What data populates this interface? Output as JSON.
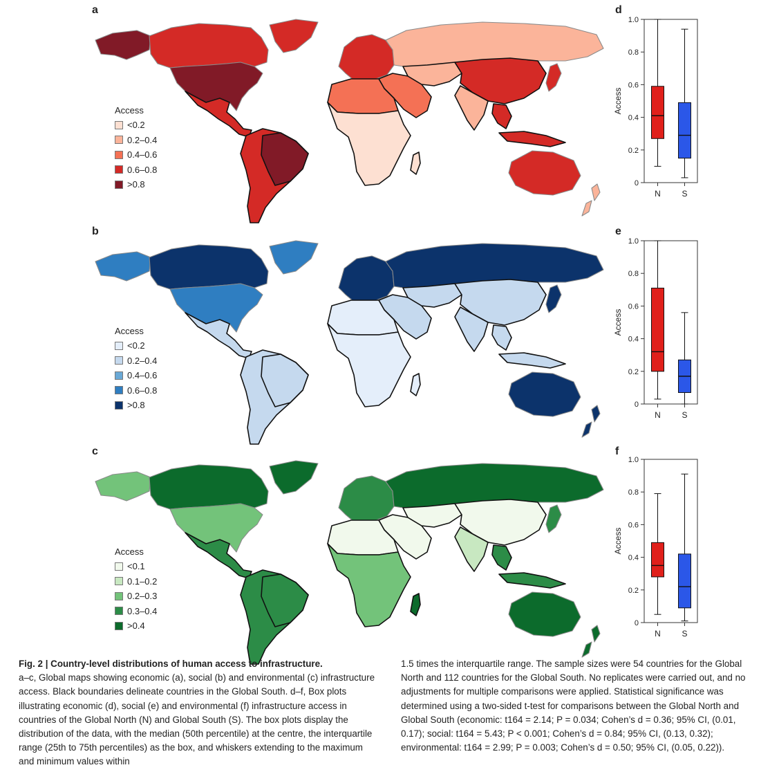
{
  "figure": {
    "panels": [
      {
        "letter": "a"
      },
      {
        "letter": "b"
      },
      {
        "letter": "c"
      },
      {
        "letter": "d"
      },
      {
        "letter": "e"
      },
      {
        "letter": "f"
      }
    ]
  },
  "maps": [
    {
      "panel": "a",
      "legend_title": "Access",
      "classes": [
        {
          "label": "<0.2",
          "color": "#fde0d2"
        },
        {
          "label": "0.2–0.4",
          "color": "#fbb49a"
        },
        {
          "label": "0.4–0.6",
          "color": "#f47155"
        },
        {
          "label": "0.6–0.8",
          "color": "#d42a26"
        },
        {
          "label": ">0.8",
          "color": "#811a27"
        }
      ],
      "regions": {
        "north_america": "#d42a26",
        "usa": "#811a27",
        "alaska": "#811a27",
        "greenland": "#d42a26",
        "mexico_central": "#d42a26",
        "south_america": "#d42a26",
        "brazil": "#811a27",
        "europe": "#d42a26",
        "russia": "#fbb49a",
        "middle_east": "#f47155",
        "central_asia": "#fbb49a",
        "china": "#d42a26",
        "india": "#fbb49a",
        "se_asia": "#d42a26",
        "japan": "#d42a26",
        "north_africa": "#f47155",
        "africa": "#fde0d2",
        "australia": "#d42a26",
        "nz": "#fbb49a",
        "madagascar": "#fde0d2"
      }
    },
    {
      "panel": "b",
      "legend_title": "Access",
      "classes": [
        {
          "label": "<0.2",
          "color": "#e4eefa"
        },
        {
          "label": "0.2–0.4",
          "color": "#c5d9ee"
        },
        {
          "label": "0.4–0.6",
          "color": "#6aa9d6"
        },
        {
          "label": "0.6–0.8",
          "color": "#2f7ec1"
        },
        {
          "label": ">0.8",
          "color": "#0c336b"
        }
      ],
      "regions": {
        "north_america": "#0c336b",
        "usa": "#2f7ec1",
        "alaska": "#2f7ec1",
        "greenland": "#2f7ec1",
        "mexico_central": "#c5d9ee",
        "south_america": "#c5d9ee",
        "brazil": "#c5d9ee",
        "europe": "#0c336b",
        "russia": "#0c336b",
        "middle_east": "#c5d9ee",
        "central_asia": "#c5d9ee",
        "china": "#c5d9ee",
        "india": "#c5d9ee",
        "se_asia": "#c5d9ee",
        "japan": "#0c336b",
        "north_africa": "#e4eefa",
        "africa": "#e4eefa",
        "australia": "#0c336b",
        "nz": "#0c336b",
        "madagascar": "#e4eefa"
      }
    },
    {
      "panel": "c",
      "legend_title": "Access",
      "classes": [
        {
          "label": "<0.1",
          "color": "#f1f9ec"
        },
        {
          "label": "0.1–0.2",
          "color": "#c8e8c1"
        },
        {
          "label": "0.2–0.3",
          "color": "#73c37a"
        },
        {
          "label": "0.3–0.4",
          "color": "#2c8c47"
        },
        {
          "label": ">0.4",
          "color": "#0c6b2c"
        }
      ],
      "regions": {
        "north_america": "#0c6b2c",
        "usa": "#73c37a",
        "alaska": "#73c37a",
        "greenland": "#0c6b2c",
        "mexico_central": "#2c8c47",
        "south_america": "#2c8c47",
        "brazil": "#2c8c47",
        "europe": "#2c8c47",
        "russia": "#0c6b2c",
        "middle_east": "#f1f9ec",
        "central_asia": "#f1f9ec",
        "china": "#f1f9ec",
        "india": "#c8e8c1",
        "se_asia": "#2c8c47",
        "japan": "#2c8c47",
        "north_africa": "#f1f9ec",
        "africa": "#73c37a",
        "australia": "#0c6b2c",
        "nz": "#0c6b2c",
        "madagascar": "#0c6b2c"
      }
    }
  ],
  "chart_data": [
    {
      "type": "box",
      "panel": "d",
      "ylabel": "Access",
      "ylim": [
        0,
        1.0
      ],
      "yticks": [
        "0",
        "0.2",
        "0.4",
        "0.6",
        "0.8",
        "1.0"
      ],
      "categories": [
        "N",
        "S"
      ],
      "boxes": [
        {
          "name": "N",
          "color": "#e0201b",
          "min": 0.1,
          "q1": 0.27,
          "median": 0.41,
          "q3": 0.59,
          "max": 1.0
        },
        {
          "name": "S",
          "color": "#2b57e8",
          "min": 0.03,
          "q1": 0.15,
          "median": 0.29,
          "q3": 0.49,
          "max": 0.94
        }
      ]
    },
    {
      "type": "box",
      "panel": "e",
      "ylabel": "Access",
      "ylim": [
        0,
        1.0
      ],
      "yticks": [
        "0",
        "0.2",
        "0.4",
        "0.6",
        "0.8",
        "1.0"
      ],
      "categories": [
        "N",
        "S"
      ],
      "boxes": [
        {
          "name": "N",
          "color": "#e0201b",
          "min": 0.03,
          "q1": 0.2,
          "median": 0.32,
          "q3": 0.71,
          "max": 1.0
        },
        {
          "name": "S",
          "color": "#2b57e8",
          "min": 0.0,
          "q1": 0.07,
          "median": 0.17,
          "q3": 0.27,
          "max": 0.56
        }
      ]
    },
    {
      "type": "box",
      "panel": "f",
      "ylabel": "Access",
      "ylim": [
        0,
        1.0
      ],
      "yticks": [
        "0",
        "0.2",
        "0.4",
        "0.6",
        "0.8",
        "1.0"
      ],
      "categories": [
        "N",
        "S"
      ],
      "boxes": [
        {
          "name": "N",
          "color": "#e0201b",
          "min": 0.05,
          "q1": 0.28,
          "median": 0.35,
          "q3": 0.49,
          "max": 0.79
        },
        {
          "name": "S",
          "color": "#2b57e8",
          "min": 0.01,
          "q1": 0.09,
          "median": 0.22,
          "q3": 0.42,
          "max": 0.91
        }
      ]
    }
  ],
  "caption": {
    "heading": "Fig. 2 | Country-level distributions of human access to infrastructure.",
    "left_body": "a–c, Global maps showing economic (a), social (b) and environmental (c) infrastructure access. Black boundaries delineate countries in the Global South. d–f, Box plots illustrating economic (d), social (e) and environmental (f) infrastructure access in countries of the Global North (N) and Global South (S). The box plots display the distribution of the data, with the median (50th percentile) at the centre, the interquartile range (25th to 75th percentiles) as the box, and whiskers extending to the maximum and minimum values within",
    "right_body": "1.5 times the interquartile range. The sample sizes were 54 countries for the Global North and 112 countries for the Global South. No replicates were carried out, and no adjustments for multiple comparisons were applied. Statistical significance was determined using a two-sided t-test for comparisons between the Global North and Global South (economic: t164 = 2.14; P = 0.034; Cohen’s d = 0.36; 95% CI, (0.01, 0.17); social: t164 = 5.43; P < 0.001; Cohen’s d = 0.84; 95% CI, (0.13, 0.32); environmental: t164 = 2.99; P = 0.003; Cohen’s d = 0.50; 95% CI, (0.05, 0.22))."
  }
}
